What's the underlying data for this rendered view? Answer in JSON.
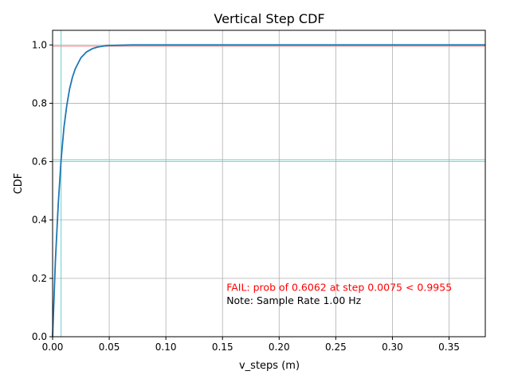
{
  "chart_data": {
    "type": "line",
    "title": "Vertical Step CDF",
    "xlabel": "v_steps (m)",
    "ylabel": "CDF",
    "xlim": [
      0,
      0.382
    ],
    "ylim": [
      0,
      1.05
    ],
    "grid": true,
    "x_ticks": [
      0.0,
      0.05,
      0.1,
      0.15,
      0.2,
      0.25,
      0.3,
      0.35
    ],
    "x_tick_labels": [
      "0.00",
      "0.05",
      "0.10",
      "0.15",
      "0.20",
      "0.25",
      "0.30",
      "0.35"
    ],
    "y_ticks": [
      0.0,
      0.2,
      0.4,
      0.6,
      0.8,
      1.0
    ],
    "y_tick_labels": [
      "0.0",
      "0.2",
      "0.4",
      "0.6",
      "0.8",
      "1.0"
    ],
    "series": [
      {
        "color": "#1f77b4",
        "x": [
          0,
          0.0025,
          0.005,
          0.0075,
          0.01,
          0.0125,
          0.015,
          0.0175,
          0.02,
          0.025,
          0.03,
          0.035,
          0.04,
          0.045,
          0.05,
          0.06,
          0.07,
          0.08,
          0.1,
          0.15,
          0.2,
          0.25,
          0.3,
          0.35,
          0.382
        ],
        "y": [
          0,
          0.262,
          0.455,
          0.606,
          0.716,
          0.792,
          0.849,
          0.889,
          0.918,
          0.956,
          0.976,
          0.987,
          0.993,
          0.996,
          0.998,
          0.999,
          1.0,
          1.0,
          1.0,
          1.0,
          1.0,
          1.0,
          1.0,
          1.0,
          1.0
        ]
      }
    ],
    "reference_lines": [
      {
        "orientation": "horizontal",
        "value": 0.9955,
        "color": "#f08080"
      },
      {
        "orientation": "horizontal",
        "value": 0.6062,
        "color": "#66cdcd"
      },
      {
        "orientation": "vertical",
        "value": 0.0075,
        "color": "#66cdcd"
      }
    ],
    "annotations": [
      {
        "text": "FAIL: prob of 0.6062 at step 0.0075 < 0.9955",
        "color": "#ff0000",
        "x": 0.1535,
        "y": 0.157
      },
      {
        "text": "Note: Sample Rate 1.00 Hz",
        "color": "#000000",
        "x": 0.1535,
        "y": 0.112
      }
    ]
  }
}
